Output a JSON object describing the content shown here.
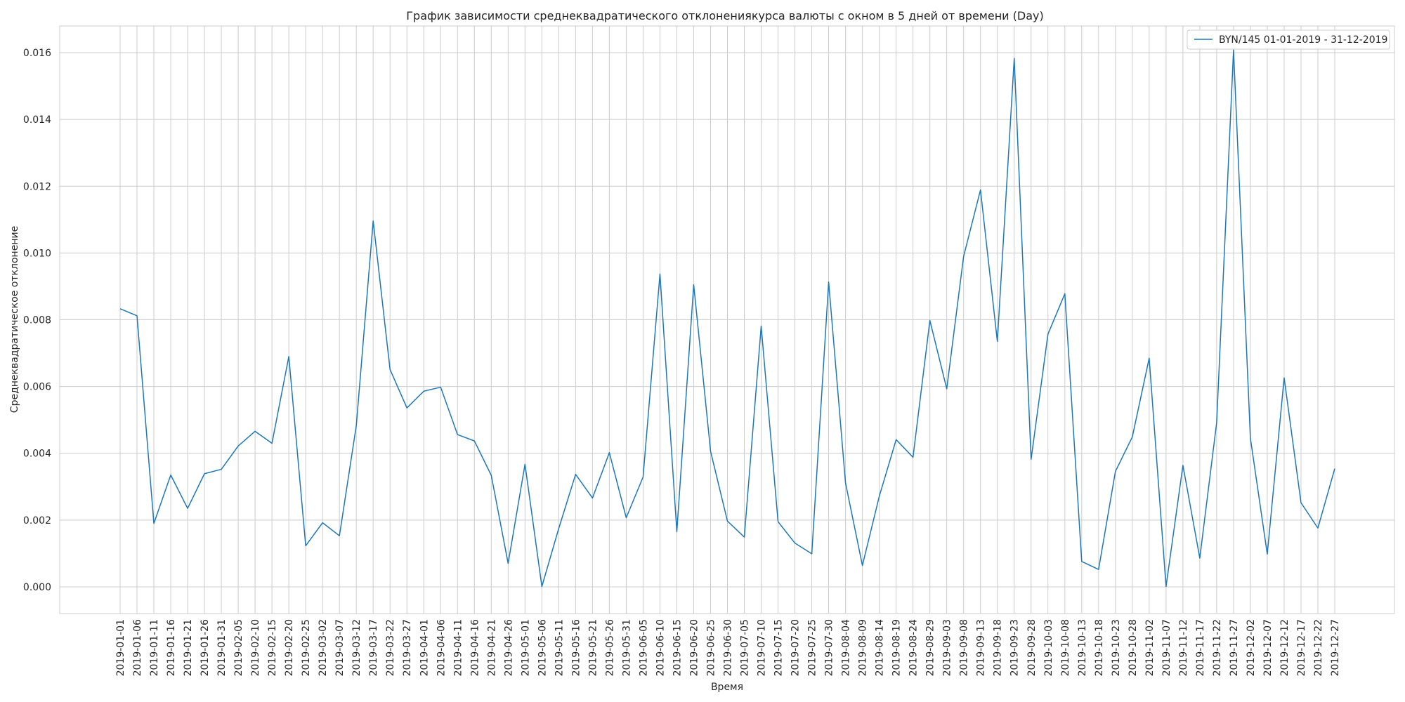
{
  "chart_data": {
    "type": "line",
    "title": "График зависимости среднеквадратического отклонениякурса валюты с окном в 5 дней от времени (Day)",
    "xlabel": "Время",
    "ylabel": "Среднеквадратическое отклонение",
    "ylim": [
      -0.0008,
      0.0168
    ],
    "yticks": [
      0.0,
      0.002,
      0.004,
      0.006,
      0.008,
      0.01,
      0.012,
      0.014,
      0.016
    ],
    "ytick_labels": [
      "0.000",
      "0.002",
      "0.004",
      "0.006",
      "0.008",
      "0.010",
      "0.012",
      "0.014",
      "0.016"
    ],
    "grid": true,
    "legend_position": "top-right",
    "series_color": "#1f77b4",
    "x": [
      "2019-01-01",
      "2019-01-06",
      "2019-01-11",
      "2019-01-16",
      "2019-01-21",
      "2019-01-26",
      "2019-01-31",
      "2019-02-05",
      "2019-02-10",
      "2019-02-15",
      "2019-02-20",
      "2019-02-25",
      "2019-03-02",
      "2019-03-07",
      "2019-03-12",
      "2019-03-17",
      "2019-03-22",
      "2019-03-27",
      "2019-04-01",
      "2019-04-06",
      "2019-04-11",
      "2019-04-16",
      "2019-04-21",
      "2019-04-26",
      "2019-05-01",
      "2019-05-06",
      "2019-05-11",
      "2019-05-16",
      "2019-05-21",
      "2019-05-26",
      "2019-05-31",
      "2019-06-05",
      "2019-06-10",
      "2019-06-15",
      "2019-06-20",
      "2019-06-25",
      "2019-06-30",
      "2019-07-05",
      "2019-07-10",
      "2019-07-15",
      "2019-07-20",
      "2019-07-25",
      "2019-07-30",
      "2019-08-04",
      "2019-08-09",
      "2019-08-14",
      "2019-08-19",
      "2019-08-24",
      "2019-08-29",
      "2019-09-03",
      "2019-09-08",
      "2019-09-13",
      "2019-09-18",
      "2019-09-23",
      "2019-09-28",
      "2019-10-03",
      "2019-10-08",
      "2019-10-13",
      "2019-10-18",
      "2019-10-23",
      "2019-10-28",
      "2019-11-02",
      "2019-11-07",
      "2019-11-12",
      "2019-11-17",
      "2019-11-22",
      "2019-11-27",
      "2019-12-02",
      "2019-12-07",
      "2019-12-12",
      "2019-12-17",
      "2019-12-22",
      "2019-12-27"
    ],
    "series": [
      {
        "name": "BYN/145 01-01-2019 - 31-12-2019",
        "values": [
          0.00833,
          0.00812,
          0.0019,
          0.00335,
          0.00235,
          0.00339,
          0.00352,
          0.00422,
          0.00466,
          0.0043,
          0.0069,
          0.00123,
          0.00192,
          0.00153,
          0.00483,
          0.01096,
          0.00651,
          0.00536,
          0.00586,
          0.00598,
          0.00456,
          0.00437,
          0.00334,
          0.0007,
          0.00367,
          1e-05,
          0.00175,
          0.00337,
          0.00266,
          0.00402,
          0.00207,
          0.00329,
          0.00937,
          0.00165,
          0.00905,
          0.00406,
          0.00197,
          0.00149,
          0.00781,
          0.00195,
          0.00131,
          0.00099,
          0.00913,
          0.00311,
          0.00064,
          0.00271,
          0.00441,
          0.00388,
          0.00798,
          0.00593,
          0.0099,
          0.01189,
          0.00735,
          0.01583,
          0.00382,
          0.00757,
          0.00878,
          0.00076,
          0.00052,
          0.00346,
          0.00449,
          0.00685,
          1e-05,
          0.00364,
          0.00086,
          0.00492,
          0.01608,
          0.00445,
          0.00098,
          0.00626,
          0.00252,
          0.00176,
          0.00354
        ]
      }
    ]
  }
}
